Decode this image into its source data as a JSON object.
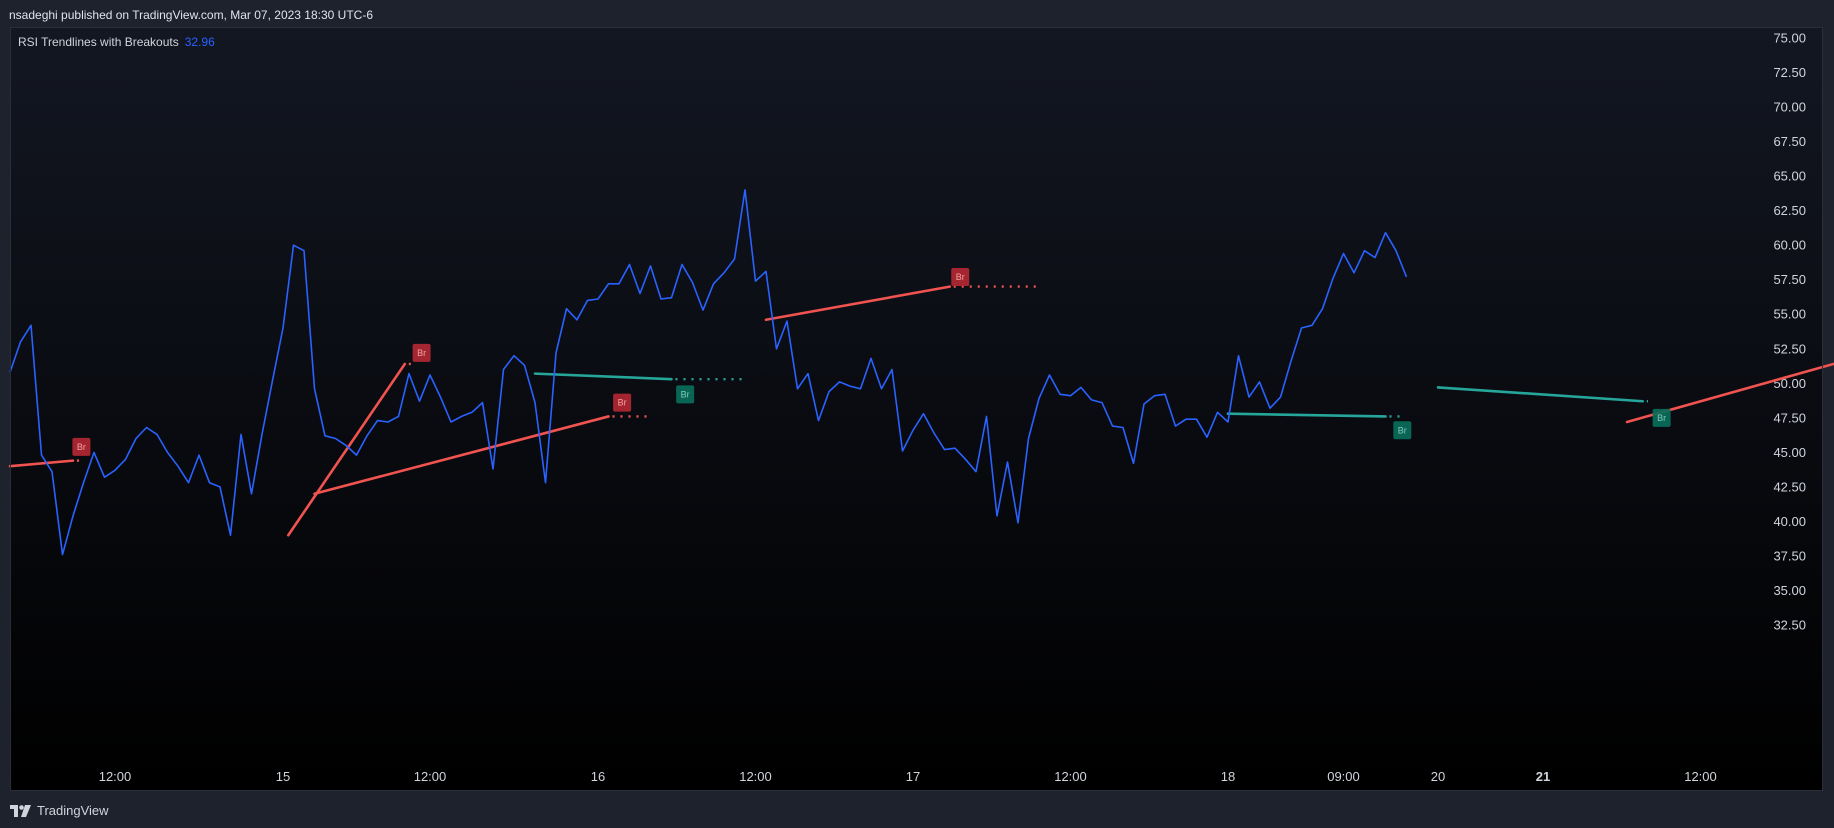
{
  "header": {
    "attribution": "nsadeghi published on TradingView.com, Mar 07, 2023 18:30 UTC-6"
  },
  "legend": {
    "indicator_name": "RSI Trendlines with Breakouts",
    "indicator_value": "32.96"
  },
  "footer": {
    "brand": "TradingView",
    "brand_icon": "tradingview-logo-icon"
  },
  "colors": {
    "background_top": "#131722",
    "background_bottom": "#000000",
    "rsi_line": "#2962ff",
    "resistance_line": "#26a69a",
    "support_line": "#f05350",
    "bear_badge": "#b22833",
    "bull_badge": "#0a6e5a",
    "axis_text": "#d1d4dc"
  },
  "chart_data": {
    "type": "line",
    "title": "",
    "xlabel": "",
    "ylabel": "",
    "ylim": [
      30.5,
      76
    ],
    "yticks": [
      "75.00",
      "72.50",
      "70.00",
      "67.50",
      "65.00",
      "62.50",
      "60.00",
      "57.50",
      "55.00",
      "52.50",
      "50.00",
      "47.50",
      "45.00",
      "42.50",
      "40.00",
      "37.50",
      "35.00",
      "32.50"
    ],
    "x_tick_labels": [
      {
        "label": "12:00",
        "i": 10,
        "bold": false
      },
      {
        "label": "15",
        "i": 26,
        "bold": false
      },
      {
        "label": "12:00",
        "i": 40,
        "bold": false
      },
      {
        "label": "16",
        "i": 56,
        "bold": false
      },
      {
        "label": "12:00",
        "i": 71,
        "bold": false
      },
      {
        "label": "17",
        "i": 86,
        "bold": false
      },
      {
        "label": "12:00",
        "i": 101,
        "bold": false
      },
      {
        "label": "18",
        "i": 116,
        "bold": false
      },
      {
        "label": "09:00",
        "i": 127,
        "bold": false
      },
      {
        "label": "20",
        "i": 136,
        "bold": false
      },
      {
        "label": "21",
        "i": 146,
        "bold": true
      },
      {
        "label": "12:00",
        "i": 161,
        "bold": false
      }
    ],
    "grid": false,
    "legend_position": "top-left",
    "series": [
      {
        "values": [
          50.8,
          53.0,
          54.2,
          44.8,
          43.6,
          37.6,
          40.4,
          42.8,
          45.0,
          43.2,
          43.7,
          44.5,
          46.0,
          46.8,
          46.3,
          45.0,
          44.0,
          42.8,
          44.8,
          42.8,
          42.5,
          39.0,
          46.3,
          42.0,
          46.3,
          50.2,
          54.0,
          60.0,
          59.6,
          49.6,
          46.2,
          46.0,
          45.5,
          44.8,
          46.2,
          47.3,
          47.2,
          47.6,
          50.7,
          48.7,
          50.6,
          49.0,
          47.2,
          47.6,
          47.9,
          48.6,
          43.8,
          51.0,
          52.0,
          51.3,
          48.6,
          42.8,
          52.2,
          55.4,
          54.6,
          56.0,
          56.1,
          57.2,
          57.2,
          58.6,
          56.5,
          58.5,
          56.1,
          56.2,
          58.6,
          57.3,
          55.3,
          57.2,
          58.0,
          59.0,
          64.0,
          57.4,
          58.1,
          52.5,
          54.5,
          49.6,
          50.7,
          47.3,
          49.4,
          50.1,
          49.8,
          49.6,
          51.8,
          49.6,
          51.0,
          45.1,
          46.6,
          47.8,
          46.4,
          45.2,
          45.3,
          44.5,
          43.6,
          47.6,
          40.4,
          44.3,
          39.9,
          46.0,
          48.9,
          50.6,
          49.2,
          49.1,
          49.7,
          48.8,
          48.6,
          46.9,
          46.8,
          44.2,
          48.5,
          49.1,
          49.2,
          46.9,
          47.4,
          47.4,
          46.1,
          47.9,
          47.2,
          52.0,
          49.0,
          50.1,
          48.2,
          49.0,
          51.6,
          54.0,
          54.2,
          55.4,
          57.6,
          59.4,
          58.0,
          59.6,
          59.1,
          60.9,
          59.6,
          57.7
        ]
      }
    ],
    "trendlines": [
      {
        "kind": "support",
        "from": [
          0,
          44.0
        ],
        "to": [
          6,
          44.4
        ],
        "dotted_to": 6.7
      },
      {
        "kind": "support",
        "from": [
          26.5,
          39.0
        ],
        "to": [
          37.6,
          51.4
        ],
        "dotted_to": 38.5
      },
      {
        "kind": "support",
        "from": [
          29.0,
          42.0
        ],
        "to": [
          57.0,
          47.6
        ],
        "dotted_to": 61.0
      },
      {
        "kind": "resistance",
        "from": [
          50.0,
          50.7
        ],
        "to": [
          63.0,
          50.3
        ],
        "dotted_to": 70.0
      },
      {
        "kind": "support",
        "from": [
          72.0,
          54.6
        ],
        "to": [
          89.5,
          57.0
        ],
        "dotted_to": 98.0
      },
      {
        "kind": "resistance",
        "from": [
          116.0,
          47.8
        ],
        "to": [
          131.0,
          47.6
        ],
        "dotted_to": 132.5
      },
      {
        "kind": "resistance",
        "from": [
          136.0,
          49.7
        ],
        "to": [
          155.5,
          48.7
        ],
        "dotted_to": 156.0
      },
      {
        "kind": "support",
        "from": [
          154.0,
          47.2
        ],
        "to": [
          176.0,
          51.9
        ],
        "dotted_to": 176.0
      }
    ],
    "breakout_markers": [
      {
        "label": "Br",
        "kind": "bear",
        "i": 6.8,
        "v": 45.4
      },
      {
        "label": "Br",
        "kind": "bear",
        "i": 39.2,
        "v": 52.2
      },
      {
        "label": "Br",
        "kind": "bear",
        "i": 58.3,
        "v": 48.6
      },
      {
        "label": "Br",
        "kind": "bull",
        "i": 64.3,
        "v": 49.2
      },
      {
        "label": "Br",
        "kind": "bear",
        "i": 90.5,
        "v": 57.7
      },
      {
        "label": "Br",
        "kind": "bull",
        "i": 132.6,
        "v": 46.6
      },
      {
        "label": "Br",
        "kind": "bull",
        "i": 157.3,
        "v": 47.5
      }
    ]
  }
}
